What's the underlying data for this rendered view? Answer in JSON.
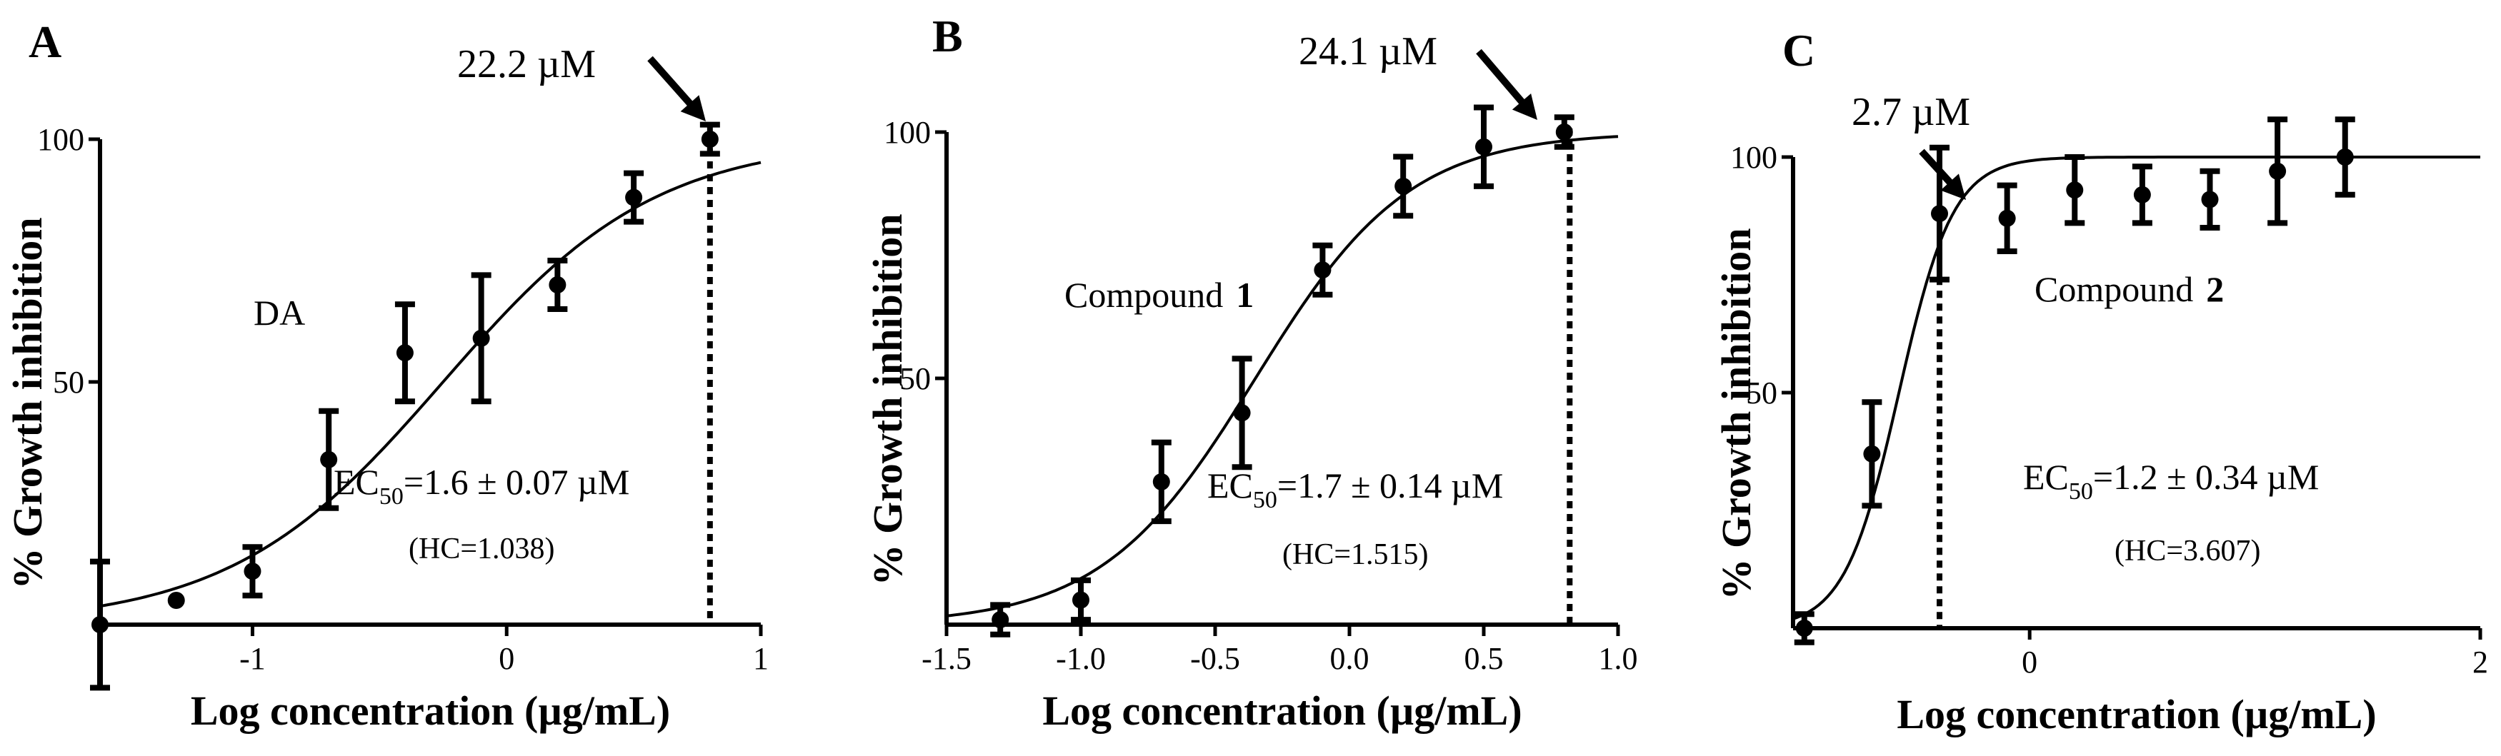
{
  "figure": {
    "background": "#ffffff",
    "foreground": "#000000"
  },
  "chart_data": [
    {
      "type": "scatter",
      "panel_label": "A",
      "xlabel": "Log concentration (µg/mL)",
      "ylabel": "% Growth inhibition",
      "xlim": [
        -1.6,
        1.0
      ],
      "ylim": [
        0,
        100
      ],
      "xticks": [
        -1,
        0,
        1
      ],
      "xtick_labels": [
        "-1",
        "0",
        "1"
      ],
      "yticks": [
        50,
        100
      ],
      "ytick_labels": [
        "50",
        "100"
      ],
      "series_label": "DA",
      "points": [
        {
          "x": -1.6,
          "y": 0,
          "err": 13
        },
        {
          "x": -1.3,
          "y": 5,
          "err": 0
        },
        {
          "x": -1.0,
          "y": 11,
          "err": 5
        },
        {
          "x": -0.7,
          "y": 34,
          "err": 10
        },
        {
          "x": -0.4,
          "y": 56,
          "err": 10
        },
        {
          "x": -0.1,
          "y": 59,
          "err": 13
        },
        {
          "x": 0.2,
          "y": 70,
          "err": 5
        },
        {
          "x": 0.5,
          "y": 88,
          "err": 5
        },
        {
          "x": 0.8,
          "y": 100,
          "err": 3
        }
      ],
      "fit": {
        "bottom": 0,
        "top": 100,
        "logEC50": -0.25,
        "hill": 1.038
      },
      "ec50_label": "EC",
      "ec50_sub": "50",
      "ec50_value": "=1.6 ± 0.07 µM",
      "hc_text": "(HC=1.038)",
      "marker_x": 0.8,
      "marker_label": "22.2 µM"
    },
    {
      "type": "scatter",
      "panel_label": "B",
      "xlabel": "Log concentration (µg/mL)",
      "ylabel": "% Growth inhibition",
      "xlim": [
        -1.5,
        1.0
      ],
      "ylim": [
        0,
        100
      ],
      "xticks": [
        -1.5,
        -1.0,
        -0.5,
        0.0,
        0.5,
        1.0
      ],
      "xtick_labels": [
        "-1.5",
        "-1.0",
        "-0.5",
        "0.0",
        "0.5",
        "1.0"
      ],
      "yticks": [
        50,
        100
      ],
      "ytick_labels": [
        "50",
        "100"
      ],
      "series_label": "Compound",
      "series_number": "1",
      "points": [
        {
          "x": -1.3,
          "y": 1,
          "err": 3
        },
        {
          "x": -1.0,
          "y": 5,
          "err": 4
        },
        {
          "x": -0.7,
          "y": 29,
          "err": 8
        },
        {
          "x": -0.4,
          "y": 43,
          "err": 11
        },
        {
          "x": -0.1,
          "y": 72,
          "err": 5
        },
        {
          "x": 0.2,
          "y": 89,
          "err": 6
        },
        {
          "x": 0.5,
          "y": 97,
          "err": 8
        },
        {
          "x": 0.8,
          "y": 100,
          "err": 3
        }
      ],
      "fit": {
        "bottom": 0,
        "top": 100,
        "logEC50": -0.35,
        "hill": 1.515
      },
      "ec50_label": "EC",
      "ec50_sub": "50",
      "ec50_value": "=1.7 ± 0.14 µM",
      "hc_text": "(HC=1.515)",
      "marker_x": 0.82,
      "marker_label": "24.1 µM"
    },
    {
      "type": "scatter",
      "panel_label": "C",
      "xlabel": "Log concentration (µg/mL)",
      "ylabel": "% Growth inhibition",
      "xlim": [
        -1.05,
        2.0
      ],
      "ylim": [
        0,
        100
      ],
      "xticks": [
        0,
        2
      ],
      "xtick_labels": [
        "0",
        "2"
      ],
      "yticks": [
        50,
        100
      ],
      "ytick_labels": [
        "50",
        "100"
      ],
      "series_label": "Compound",
      "series_number": "2",
      "points": [
        {
          "x": -1.0,
          "y": 0,
          "err": 3
        },
        {
          "x": -0.7,
          "y": 37,
          "err": 11
        },
        {
          "x": -0.4,
          "y": 88,
          "err": 14
        },
        {
          "x": -0.1,
          "y": 87,
          "err": 7
        },
        {
          "x": 0.2,
          "y": 93,
          "err": 7
        },
        {
          "x": 0.5,
          "y": 92,
          "err": 6
        },
        {
          "x": 0.8,
          "y": 91,
          "err": 6
        },
        {
          "x": 1.1,
          "y": 97,
          "err": 11
        },
        {
          "x": 1.4,
          "y": 100,
          "err": 8
        }
      ],
      "fit": {
        "bottom": 0,
        "top": 100,
        "logEC50": -0.58,
        "hill": 3.607
      },
      "ec50_label": "EC",
      "ec50_sub": "50",
      "ec50_value": "=1.2 ± 0.34 µM",
      "hc_text": "(HC=3.607)",
      "marker_x": -0.4,
      "marker_label": "2.7 µM"
    }
  ]
}
